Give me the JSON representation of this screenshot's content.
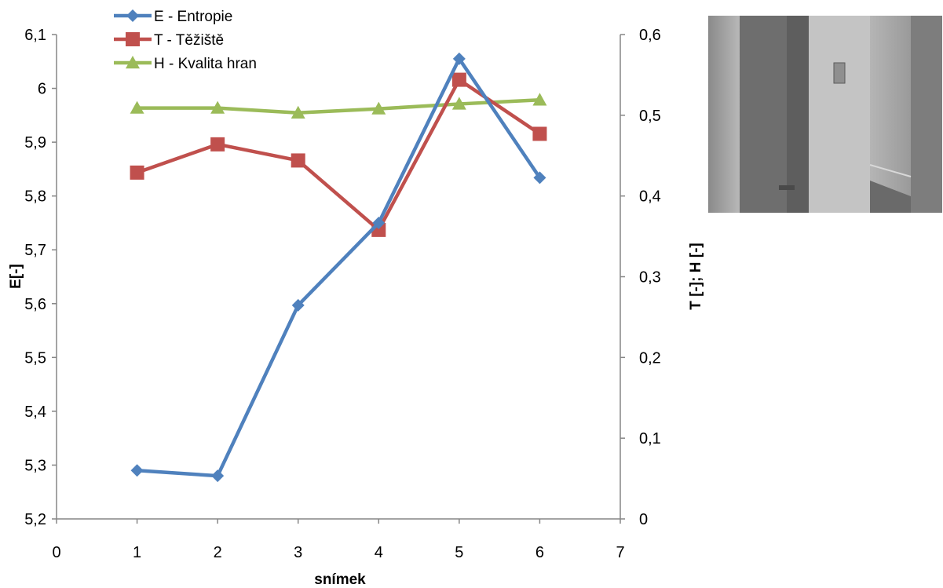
{
  "chart_data": {
    "type": "line",
    "xlabel": "snímek",
    "ylabel_left": "E[-]",
    "ylabel_right": "T [-]; H [-]",
    "xlim": [
      0,
      7
    ],
    "ylim_left": [
      5.2,
      6.1
    ],
    "ylim_right": [
      0,
      0.6
    ],
    "x_ticks": [
      "0",
      "1",
      "2",
      "3",
      "4",
      "5",
      "6",
      "7"
    ],
    "y_left_ticks": [
      "5,2",
      "5,3",
      "5,4",
      "5,5",
      "5,6",
      "5,7",
      "5,8",
      "5,9",
      "6",
      "6,1"
    ],
    "y_right_ticks": [
      "0",
      "0,1",
      "0,2",
      "0,3",
      "0,4",
      "0,5",
      "0,6"
    ],
    "grid": false,
    "legend_position": "top-left",
    "x": [
      1,
      2,
      3,
      4,
      5,
      6
    ],
    "series": [
      {
        "name": "E - Entropie",
        "axis": "left",
        "color": "#4f81bd",
        "marker": "diamond",
        "values": [
          5.29,
          5.28,
          5.597,
          5.75,
          6.055,
          5.834
        ]
      },
      {
        "name": "T - Těžiště",
        "axis": "right",
        "color": "#c0504d",
        "marker": "square",
        "values": [
          0.429,
          0.464,
          0.444,
          0.358,
          0.544,
          0.477
        ]
      },
      {
        "name": "H - Kvalita hran",
        "axis": "right",
        "color": "#9bbb59",
        "marker": "triangle",
        "values": [
          0.509,
          0.509,
          0.503,
          0.508,
          0.514,
          0.519
        ]
      }
    ]
  },
  "photo": {
    "icon": "door-corridor-photo"
  }
}
